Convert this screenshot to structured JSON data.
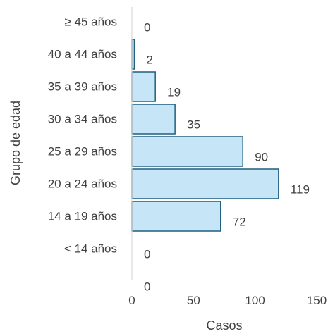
{
  "chart_data": {
    "type": "bar",
    "orientation": "horizontal",
    "categories": [
      "≥ 45 años",
      "40 a 44 años",
      "35 a 39 años",
      "30 a 34 años",
      "25 a 29 años",
      "20 a 24 años",
      "14 a 19 años",
      "< 14 años",
      ""
    ],
    "values": [
      0,
      2,
      19,
      35,
      90,
      119,
      72,
      0,
      0
    ],
    "data_labels": [
      "0",
      "2",
      "19",
      "35",
      "90",
      "119",
      "72",
      "0",
      "0"
    ],
    "xlabel": "Casos",
    "ylabel": "Grupo de edad",
    "xlim": [
      0,
      150
    ],
    "xticks": [
      "0",
      "50",
      "100",
      "150"
    ],
    "grid": false,
    "legend": "none",
    "colors": {
      "bar_fill": "#c6e6f7",
      "bar_stroke": "#1f5f7f",
      "axis_line": "#d9d9d9",
      "text": "#404040"
    }
  }
}
